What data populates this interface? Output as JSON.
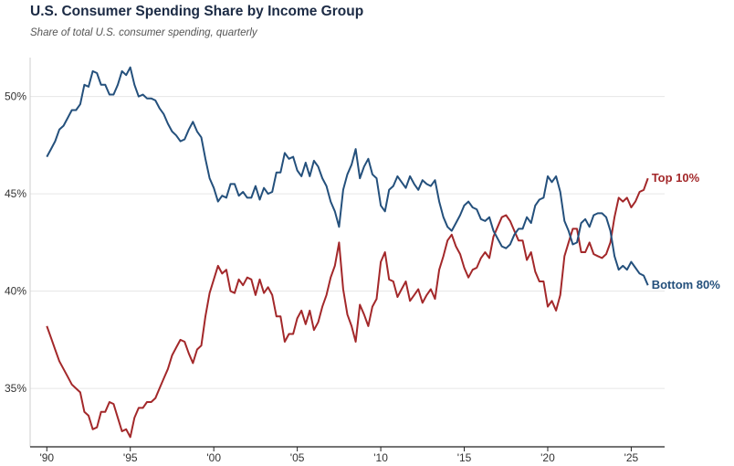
{
  "title": "U.S. Consumer Spending Share by Income Group",
  "subtitle": "Share of total U.S. consumer spending, quarterly",
  "colors": {
    "top": "#a3282a",
    "bottom": "#24507c",
    "grid": "#e6e6e6",
    "axis": "#222222"
  },
  "chart_data": {
    "type": "line",
    "title": "U.S. Consumer Spending Share by Income Group",
    "subtitle": "Share of total U.S. consumer spending, quarterly",
    "xlim": [
      1989.0,
      2027.0
    ],
    "ylim": [
      32.0,
      52.0
    ],
    "grid": "horizontal",
    "legend": "direct labels at line ends",
    "x_ticks": [
      {
        "value": 1990,
        "label": "'90"
      },
      {
        "value": 1995,
        "label": "'95"
      },
      {
        "value": 2000,
        "label": "'00"
      },
      {
        "value": 2005,
        "label": "'05"
      },
      {
        "value": 2010,
        "label": "'10"
      },
      {
        "value": 2015,
        "label": "'15"
      },
      {
        "value": 2020,
        "label": "'20"
      },
      {
        "value": 2025,
        "label": "'25"
      }
    ],
    "y_ticks": [
      {
        "value": 35,
        "label": "35%"
      },
      {
        "value": 40,
        "label": "40%"
      },
      {
        "value": 45,
        "label": "45%"
      },
      {
        "value": 50,
        "label": "50%"
      }
    ],
    "series": [
      {
        "name": "Top 10%",
        "color": "#a3282a",
        "points": [
          [
            1990.0,
            38.2
          ],
          [
            1990.25,
            37.6
          ],
          [
            1990.5,
            37.0
          ],
          [
            1990.75,
            36.4
          ],
          [
            1991.0,
            36.0
          ],
          [
            1991.25,
            35.6
          ],
          [
            1991.5,
            35.2
          ],
          [
            1991.75,
            35.0
          ],
          [
            1992.0,
            34.8
          ],
          [
            1992.25,
            33.8
          ],
          [
            1992.5,
            33.6
          ],
          [
            1992.75,
            32.9
          ],
          [
            1993.0,
            33.0
          ],
          [
            1993.25,
            33.8
          ],
          [
            1993.5,
            33.8
          ],
          [
            1993.75,
            34.3
          ],
          [
            1994.0,
            34.2
          ],
          [
            1994.25,
            33.5
          ],
          [
            1994.5,
            32.8
          ],
          [
            1994.75,
            32.9
          ],
          [
            1995.0,
            32.5
          ],
          [
            1995.25,
            33.5
          ],
          [
            1995.5,
            34.0
          ],
          [
            1995.75,
            34.0
          ],
          [
            1996.0,
            34.3
          ],
          [
            1996.25,
            34.3
          ],
          [
            1996.5,
            34.5
          ],
          [
            1996.75,
            35.0
          ],
          [
            1997.0,
            35.5
          ],
          [
            1997.25,
            36.0
          ],
          [
            1997.5,
            36.7
          ],
          [
            1997.75,
            37.1
          ],
          [
            1998.0,
            37.5
          ],
          [
            1998.25,
            37.4
          ],
          [
            1998.5,
            36.8
          ],
          [
            1998.75,
            36.3
          ],
          [
            1999.0,
            37.0
          ],
          [
            1999.25,
            37.2
          ],
          [
            1999.5,
            38.7
          ],
          [
            1999.75,
            39.9
          ],
          [
            2000.0,
            40.6
          ],
          [
            2000.25,
            41.3
          ],
          [
            2000.5,
            40.9
          ],
          [
            2000.75,
            41.1
          ],
          [
            2001.0,
            40.0
          ],
          [
            2001.25,
            39.9
          ],
          [
            2001.5,
            40.6
          ],
          [
            2001.75,
            40.3
          ],
          [
            2002.0,
            40.7
          ],
          [
            2002.25,
            40.6
          ],
          [
            2002.5,
            39.8
          ],
          [
            2002.75,
            40.6
          ],
          [
            2003.0,
            39.9
          ],
          [
            2003.25,
            40.2
          ],
          [
            2003.5,
            39.8
          ],
          [
            2003.75,
            38.7
          ],
          [
            2004.0,
            38.7
          ],
          [
            2004.25,
            37.4
          ],
          [
            2004.5,
            37.8
          ],
          [
            2004.75,
            37.8
          ],
          [
            2005.0,
            38.6
          ],
          [
            2005.25,
            39.0
          ],
          [
            2005.5,
            38.3
          ],
          [
            2005.75,
            39.0
          ],
          [
            2006.0,
            38.0
          ],
          [
            2006.25,
            38.4
          ],
          [
            2006.5,
            39.2
          ],
          [
            2006.75,
            39.8
          ],
          [
            2007.0,
            40.7
          ],
          [
            2007.25,
            41.3
          ],
          [
            2007.5,
            42.5
          ],
          [
            2007.75,
            40.1
          ],
          [
            2008.0,
            38.8
          ],
          [
            2008.25,
            38.2
          ],
          [
            2008.5,
            37.4
          ],
          [
            2008.75,
            39.3
          ],
          [
            2009.0,
            38.8
          ],
          [
            2009.25,
            38.2
          ],
          [
            2009.5,
            39.2
          ],
          [
            2009.75,
            39.6
          ],
          [
            2010.0,
            41.5
          ],
          [
            2010.25,
            42.0
          ],
          [
            2010.5,
            40.6
          ],
          [
            2010.75,
            40.5
          ],
          [
            2011.0,
            39.7
          ],
          [
            2011.25,
            40.1
          ],
          [
            2011.5,
            40.5
          ],
          [
            2011.75,
            39.5
          ],
          [
            2012.0,
            39.8
          ],
          [
            2012.25,
            40.1
          ],
          [
            2012.5,
            39.4
          ],
          [
            2012.75,
            39.8
          ],
          [
            2013.0,
            40.1
          ],
          [
            2013.25,
            39.6
          ],
          [
            2013.5,
            41.1
          ],
          [
            2013.75,
            41.8
          ],
          [
            2014.0,
            42.6
          ],
          [
            2014.25,
            42.9
          ],
          [
            2014.5,
            42.3
          ],
          [
            2014.75,
            41.9
          ],
          [
            2015.0,
            41.2
          ],
          [
            2015.25,
            40.7
          ],
          [
            2015.5,
            41.1
          ],
          [
            2015.75,
            41.2
          ],
          [
            2016.0,
            41.7
          ],
          [
            2016.25,
            42.0
          ],
          [
            2016.5,
            41.7
          ],
          [
            2016.75,
            42.8
          ],
          [
            2017.0,
            43.3
          ],
          [
            2017.25,
            43.8
          ],
          [
            2017.5,
            43.9
          ],
          [
            2017.75,
            43.6
          ],
          [
            2018.0,
            43.1
          ],
          [
            2018.25,
            42.6
          ],
          [
            2018.5,
            42.6
          ],
          [
            2018.75,
            41.6
          ],
          [
            2019.0,
            42.0
          ],
          [
            2019.25,
            41.0
          ],
          [
            2019.5,
            40.5
          ],
          [
            2019.75,
            40.5
          ],
          [
            2020.0,
            39.2
          ],
          [
            2020.25,
            39.5
          ],
          [
            2020.5,
            39.0
          ],
          [
            2020.75,
            39.8
          ],
          [
            2021.0,
            41.8
          ],
          [
            2021.25,
            42.5
          ],
          [
            2021.5,
            43.2
          ],
          [
            2021.75,
            43.2
          ],
          [
            2022.0,
            42.0
          ],
          [
            2022.25,
            42.0
          ],
          [
            2022.5,
            42.5
          ],
          [
            2022.75,
            41.9
          ],
          [
            2023.0,
            41.8
          ],
          [
            2023.25,
            41.7
          ],
          [
            2023.5,
            41.9
          ],
          [
            2023.75,
            42.5
          ],
          [
            2024.0,
            43.8
          ],
          [
            2024.25,
            44.8
          ],
          [
            2024.5,
            44.6
          ],
          [
            2024.75,
            44.8
          ],
          [
            2025.0,
            44.3
          ],
          [
            2025.25,
            44.6
          ],
          [
            2025.5,
            45.1
          ],
          [
            2025.75,
            45.2
          ],
          [
            2026.0,
            45.8
          ]
        ]
      },
      {
        "name": "Bottom 80%",
        "color": "#24507c",
        "points": [
          [
            1990.0,
            46.9
          ],
          [
            1990.25,
            47.3
          ],
          [
            1990.5,
            47.7
          ],
          [
            1990.75,
            48.3
          ],
          [
            1991.0,
            48.5
          ],
          [
            1991.25,
            48.9
          ],
          [
            1991.5,
            49.3
          ],
          [
            1991.75,
            49.3
          ],
          [
            1992.0,
            49.6
          ],
          [
            1992.25,
            50.6
          ],
          [
            1992.5,
            50.5
          ],
          [
            1992.75,
            51.3
          ],
          [
            1993.0,
            51.2
          ],
          [
            1993.25,
            50.6
          ],
          [
            1993.5,
            50.6
          ],
          [
            1993.75,
            50.1
          ],
          [
            1994.0,
            50.1
          ],
          [
            1994.25,
            50.6
          ],
          [
            1994.5,
            51.3
          ],
          [
            1994.75,
            51.1
          ],
          [
            1995.0,
            51.5
          ],
          [
            1995.25,
            50.6
          ],
          [
            1995.5,
            50.0
          ],
          [
            1995.75,
            50.1
          ],
          [
            1996.0,
            49.9
          ],
          [
            1996.25,
            49.9
          ],
          [
            1996.5,
            49.8
          ],
          [
            1996.75,
            49.4
          ],
          [
            1997.0,
            49.1
          ],
          [
            1997.25,
            48.6
          ],
          [
            1997.5,
            48.2
          ],
          [
            1997.75,
            48.0
          ],
          [
            1998.0,
            47.7
          ],
          [
            1998.25,
            47.8
          ],
          [
            1998.5,
            48.3
          ],
          [
            1998.75,
            48.7
          ],
          [
            1999.0,
            48.2
          ],
          [
            1999.25,
            47.9
          ],
          [
            1999.5,
            46.8
          ],
          [
            1999.75,
            45.8
          ],
          [
            2000.0,
            45.3
          ],
          [
            2000.25,
            44.6
          ],
          [
            2000.5,
            44.9
          ],
          [
            2000.75,
            44.8
          ],
          [
            2001.0,
            45.5
          ],
          [
            2001.25,
            45.5
          ],
          [
            2001.5,
            44.9
          ],
          [
            2001.75,
            45.1
          ],
          [
            2002.0,
            44.8
          ],
          [
            2002.25,
            44.8
          ],
          [
            2002.5,
            45.4
          ],
          [
            2002.75,
            44.7
          ],
          [
            2003.0,
            45.3
          ],
          [
            2003.25,
            45.0
          ],
          [
            2003.5,
            45.1
          ],
          [
            2003.75,
            46.1
          ],
          [
            2004.0,
            46.1
          ],
          [
            2004.25,
            47.1
          ],
          [
            2004.5,
            46.8
          ],
          [
            2004.75,
            46.9
          ],
          [
            2005.0,
            46.2
          ],
          [
            2005.25,
            45.9
          ],
          [
            2005.5,
            46.6
          ],
          [
            2005.75,
            45.9
          ],
          [
            2006.0,
            46.7
          ],
          [
            2006.25,
            46.4
          ],
          [
            2006.5,
            45.8
          ],
          [
            2006.75,
            45.4
          ],
          [
            2007.0,
            44.6
          ],
          [
            2007.25,
            44.1
          ],
          [
            2007.5,
            43.3
          ],
          [
            2007.75,
            45.2
          ],
          [
            2008.0,
            46.0
          ],
          [
            2008.25,
            46.5
          ],
          [
            2008.5,
            47.3
          ],
          [
            2008.75,
            45.8
          ],
          [
            2009.0,
            46.4
          ],
          [
            2009.25,
            46.8
          ],
          [
            2009.5,
            46.0
          ],
          [
            2009.75,
            45.8
          ],
          [
            2010.0,
            44.4
          ],
          [
            2010.25,
            44.1
          ],
          [
            2010.5,
            45.2
          ],
          [
            2010.75,
            45.4
          ],
          [
            2011.0,
            45.9
          ],
          [
            2011.25,
            45.6
          ],
          [
            2011.5,
            45.3
          ],
          [
            2011.75,
            45.9
          ],
          [
            2012.0,
            45.5
          ],
          [
            2012.25,
            45.2
          ],
          [
            2012.5,
            45.7
          ],
          [
            2012.75,
            45.5
          ],
          [
            2013.0,
            45.4
          ],
          [
            2013.25,
            45.7
          ],
          [
            2013.5,
            44.6
          ],
          [
            2013.75,
            43.8
          ],
          [
            2014.0,
            43.3
          ],
          [
            2014.25,
            43.1
          ],
          [
            2014.5,
            43.5
          ],
          [
            2014.75,
            43.9
          ],
          [
            2015.0,
            44.4
          ],
          [
            2015.25,
            44.6
          ],
          [
            2015.5,
            44.3
          ],
          [
            2015.75,
            44.2
          ],
          [
            2016.0,
            43.7
          ],
          [
            2016.25,
            43.6
          ],
          [
            2016.5,
            43.8
          ],
          [
            2016.75,
            43.1
          ],
          [
            2017.0,
            42.7
          ],
          [
            2017.25,
            42.3
          ],
          [
            2017.5,
            42.2
          ],
          [
            2017.75,
            42.4
          ],
          [
            2018.0,
            42.9
          ],
          [
            2018.25,
            43.2
          ],
          [
            2018.5,
            43.2
          ],
          [
            2018.75,
            43.8
          ],
          [
            2019.0,
            43.5
          ],
          [
            2019.25,
            44.4
          ],
          [
            2019.5,
            44.7
          ],
          [
            2019.75,
            44.8
          ],
          [
            2020.0,
            45.9
          ],
          [
            2020.25,
            45.6
          ],
          [
            2020.5,
            45.9
          ],
          [
            2020.75,
            45.1
          ],
          [
            2021.0,
            43.6
          ],
          [
            2021.25,
            43.1
          ],
          [
            2021.5,
            42.4
          ],
          [
            2021.75,
            42.5
          ],
          [
            2022.0,
            43.5
          ],
          [
            2022.25,
            43.7
          ],
          [
            2022.5,
            43.3
          ],
          [
            2022.75,
            43.9
          ],
          [
            2023.0,
            44.0
          ],
          [
            2023.25,
            44.0
          ],
          [
            2023.5,
            43.8
          ],
          [
            2023.75,
            43.1
          ],
          [
            2024.0,
            41.8
          ],
          [
            2024.25,
            41.1
          ],
          [
            2024.5,
            41.3
          ],
          [
            2024.75,
            41.1
          ],
          [
            2025.0,
            41.5
          ],
          [
            2025.25,
            41.2
          ],
          [
            2025.5,
            40.9
          ],
          [
            2025.75,
            40.8
          ],
          [
            2026.0,
            40.3
          ]
        ]
      }
    ]
  }
}
